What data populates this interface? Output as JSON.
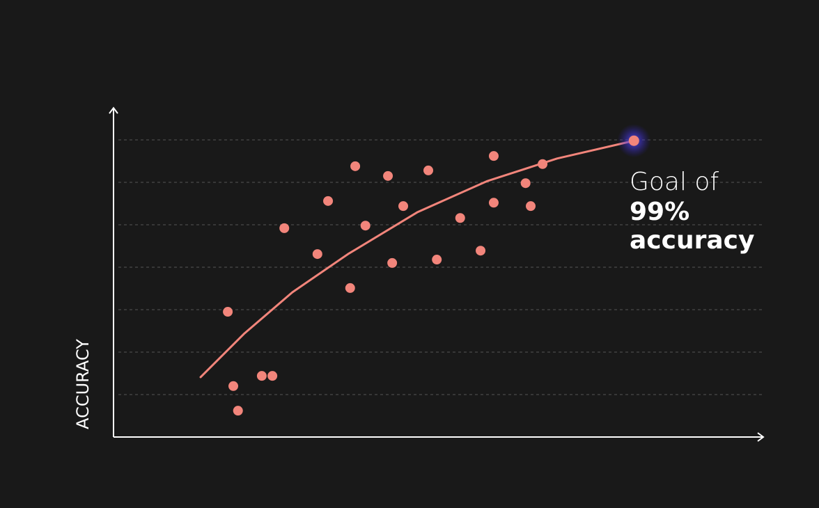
{
  "chart_data": {
    "type": "scatter",
    "ylabel": "ACCURACY",
    "x": [
      2.69,
      2.82,
      2.93,
      3.49,
      3.74,
      4.02,
      4.8,
      5.05,
      5.57,
      5.69,
      5.93,
      6.46,
      6.56,
      6.82,
      7.41,
      7.61,
      8.16,
      8.64,
      8.95,
      8.95,
      9.7,
      9.82,
      10.1
    ],
    "y": [
      2.95,
      1.2,
      0.62,
      1.44,
      1.44,
      4.92,
      4.31,
      5.56,
      3.51,
      6.38,
      4.98,
      6.15,
      4.1,
      5.44,
      6.28,
      4.18,
      5.16,
      4.39,
      6.62,
      5.52,
      5.98,
      5.44,
      6.43
    ],
    "color": "#f2857b",
    "trend": {
      "x": [
        2.05,
        3.07,
        4.21,
        5.52,
        7.16,
        8.8,
        10.44,
        12.25
      ],
      "y": [
        1.41,
        2.43,
        3.41,
        4.31,
        5.3,
        6.03,
        6.56,
        6.98
      ]
    },
    "goal": {
      "x": 12.25,
      "y": 6.98,
      "label": [
        "Goal of",
        "99%",
        "accuracy"
      ]
    },
    "xlim": [
      0,
      15.28
    ],
    "ylim": [
      0,
      7.75
    ],
    "grid": true
  }
}
